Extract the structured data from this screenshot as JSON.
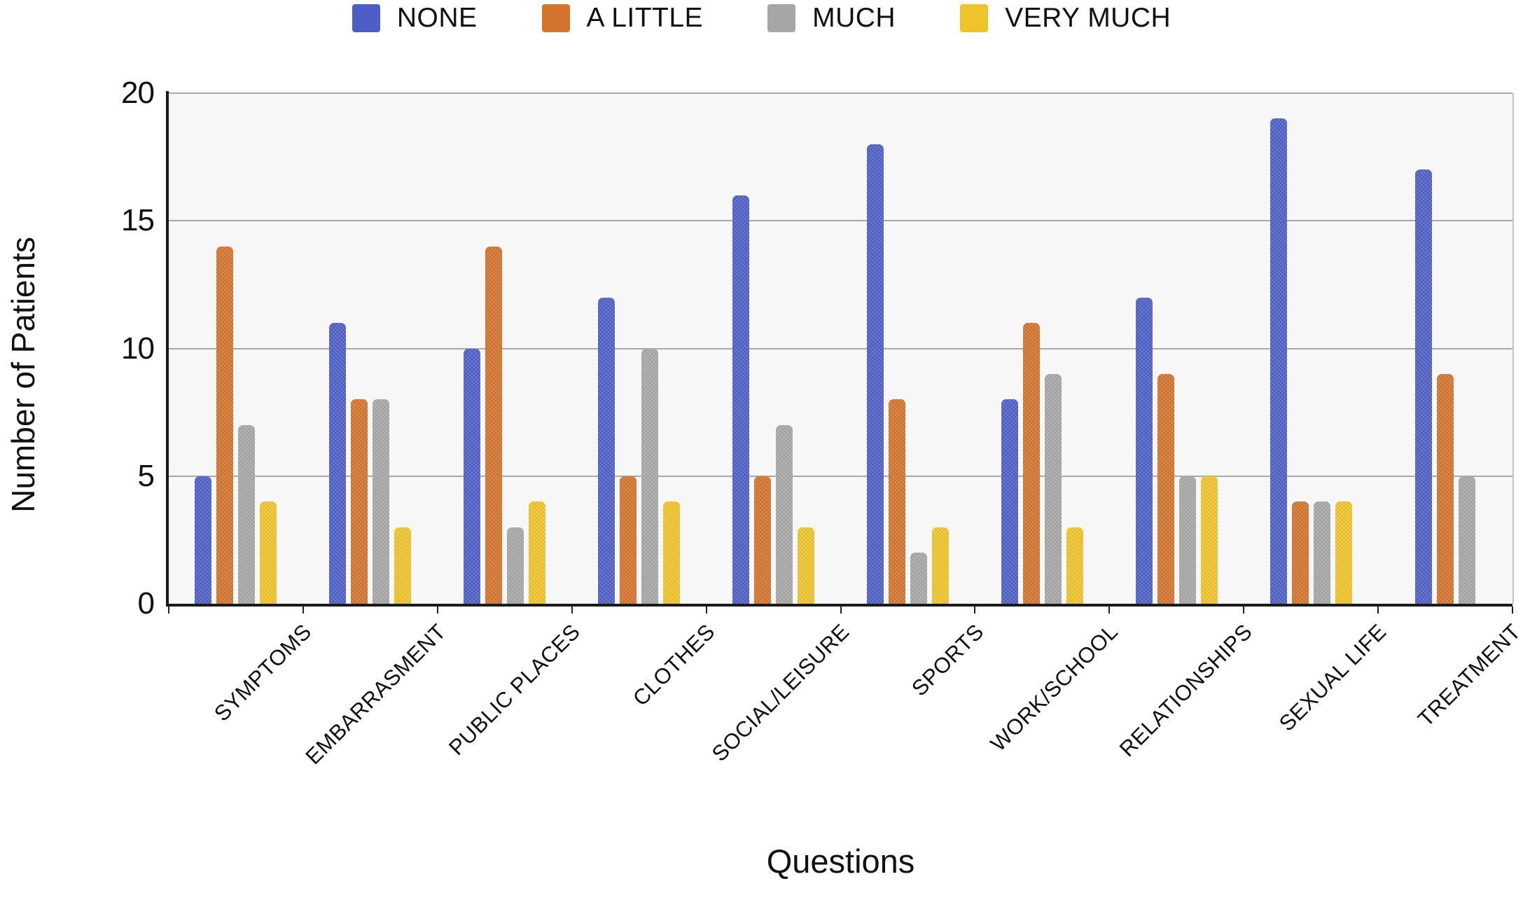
{
  "chart_data": {
    "type": "bar",
    "title": "",
    "xlabel": "Questions",
    "ylabel": "Number of Patients",
    "categories": [
      "SYMPTOMS",
      "EMBARRASMENT",
      "PUBLIC PLACES",
      "CLOTHES",
      "SOCIAL/LEISURE",
      "SPORTS",
      "WORK/SCHOOL",
      "RELATIONSHIPS",
      "SEXUAL LIFE",
      "TREATMENT"
    ],
    "series": [
      {
        "name": "NONE",
        "color": "#4d5ec4",
        "values": [
          5,
          11,
          10,
          12,
          16,
          18,
          8,
          12,
          19,
          17
        ]
      },
      {
        "name": "A LITTLE",
        "color": "#d3732c",
        "values": [
          14,
          8,
          14,
          5,
          5,
          8,
          11,
          9,
          4,
          9
        ]
      },
      {
        "name": "MUCH",
        "color": "#a6a6a6",
        "values": [
          7,
          8,
          3,
          10,
          7,
          2,
          9,
          5,
          4,
          5
        ]
      },
      {
        "name": "VERY MUCH",
        "color": "#efc32a",
        "values": [
          4,
          3,
          4,
          4,
          3,
          3,
          3,
          5,
          4,
          0
        ]
      }
    ],
    "ylim": [
      0,
      20
    ],
    "yticks": [
      0,
      5,
      10,
      15,
      20
    ],
    "grid": true,
    "legend_position": "top",
    "plot_background": "#f7f7f7",
    "gridline_color": "#a9a9a9",
    "axis_color": "#1a1a1a"
  }
}
